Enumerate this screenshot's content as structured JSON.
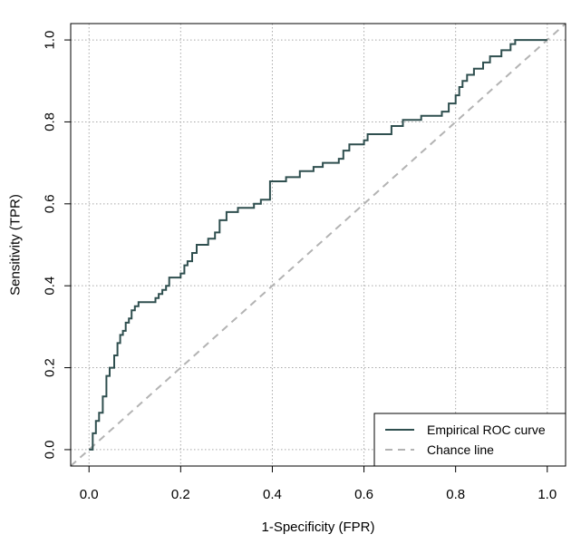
{
  "chart_data": {
    "type": "line",
    "xlabel": "1-Specificity (FPR)",
    "ylabel": "Sensitivity (TPR)",
    "xlim": [
      -0.04,
      1.04
    ],
    "ylim": [
      -0.04,
      1.04
    ],
    "x_ticks": [
      0.0,
      0.2,
      0.4,
      0.6,
      0.8,
      1.0
    ],
    "x_tick_labels": [
      "0.0",
      "0.2",
      "0.4",
      "0.6",
      "0.8",
      "1.0"
    ],
    "y_ticks": [
      0.0,
      0.2,
      0.4,
      0.6,
      0.8,
      1.0
    ],
    "y_tick_labels": [
      "0.0",
      "0.2",
      "0.4",
      "0.6",
      "0.8",
      "1.0"
    ],
    "grid": true,
    "legend_position": "bottom-right",
    "series": [
      {
        "name": "Empirical ROC curve",
        "style": "solid",
        "color": "#2f4f4f",
        "x": [
          0.0,
          0.008,
          0.008,
          0.015,
          0.015,
          0.022,
          0.022,
          0.03,
          0.03,
          0.038,
          0.038,
          0.045,
          0.045,
          0.055,
          0.055,
          0.062,
          0.062,
          0.068,
          0.068,
          0.074,
          0.074,
          0.08,
          0.08,
          0.087,
          0.087,
          0.093,
          0.093,
          0.1,
          0.1,
          0.108,
          0.108,
          0.145,
          0.145,
          0.152,
          0.152,
          0.16,
          0.16,
          0.168,
          0.168,
          0.175,
          0.175,
          0.2,
          0.2,
          0.208,
          0.208,
          0.215,
          0.215,
          0.225,
          0.225,
          0.235,
          0.235,
          0.26,
          0.26,
          0.275,
          0.275,
          0.285,
          0.285,
          0.3,
          0.3,
          0.325,
          0.325,
          0.36,
          0.36,
          0.375,
          0.375,
          0.395,
          0.395,
          0.43,
          0.43,
          0.46,
          0.46,
          0.49,
          0.49,
          0.51,
          0.51,
          0.545,
          0.545,
          0.555,
          0.555,
          0.568,
          0.568,
          0.6,
          0.6,
          0.608,
          0.608,
          0.66,
          0.66,
          0.685,
          0.685,
          0.725,
          0.725,
          0.77,
          0.77,
          0.785,
          0.785,
          0.8,
          0.8,
          0.808,
          0.808,
          0.815,
          0.815,
          0.825,
          0.825,
          0.84,
          0.84,
          0.86,
          0.86,
          0.875,
          0.875,
          0.9,
          0.9,
          0.92,
          0.92,
          0.93,
          0.93,
          1.0
        ],
        "y": [
          0.0,
          0.0,
          0.04,
          0.04,
          0.07,
          0.07,
          0.09,
          0.09,
          0.13,
          0.13,
          0.18,
          0.18,
          0.2,
          0.2,
          0.23,
          0.23,
          0.26,
          0.26,
          0.28,
          0.28,
          0.29,
          0.29,
          0.31,
          0.31,
          0.32,
          0.32,
          0.34,
          0.34,
          0.35,
          0.35,
          0.36,
          0.36,
          0.37,
          0.37,
          0.38,
          0.38,
          0.39,
          0.39,
          0.4,
          0.4,
          0.42,
          0.42,
          0.43,
          0.43,
          0.45,
          0.45,
          0.46,
          0.46,
          0.48,
          0.48,
          0.5,
          0.5,
          0.515,
          0.515,
          0.53,
          0.53,
          0.56,
          0.56,
          0.58,
          0.58,
          0.59,
          0.59,
          0.6,
          0.6,
          0.61,
          0.61,
          0.655,
          0.655,
          0.665,
          0.665,
          0.68,
          0.68,
          0.69,
          0.69,
          0.7,
          0.7,
          0.71,
          0.71,
          0.73,
          0.73,
          0.745,
          0.745,
          0.755,
          0.755,
          0.77,
          0.77,
          0.79,
          0.79,
          0.805,
          0.805,
          0.815,
          0.815,
          0.825,
          0.825,
          0.845,
          0.845,
          0.865,
          0.865,
          0.885,
          0.885,
          0.9,
          0.9,
          0.915,
          0.915,
          0.93,
          0.93,
          0.945,
          0.945,
          0.96,
          0.96,
          0.975,
          0.975,
          0.99,
          0.99,
          1.0,
          1.0
        ]
      },
      {
        "name": "Chance line",
        "style": "dashed",
        "color": "#b3b3b3",
        "x": [
          -0.04,
          1.04
        ],
        "y": [
          -0.04,
          1.04
        ]
      }
    ]
  }
}
